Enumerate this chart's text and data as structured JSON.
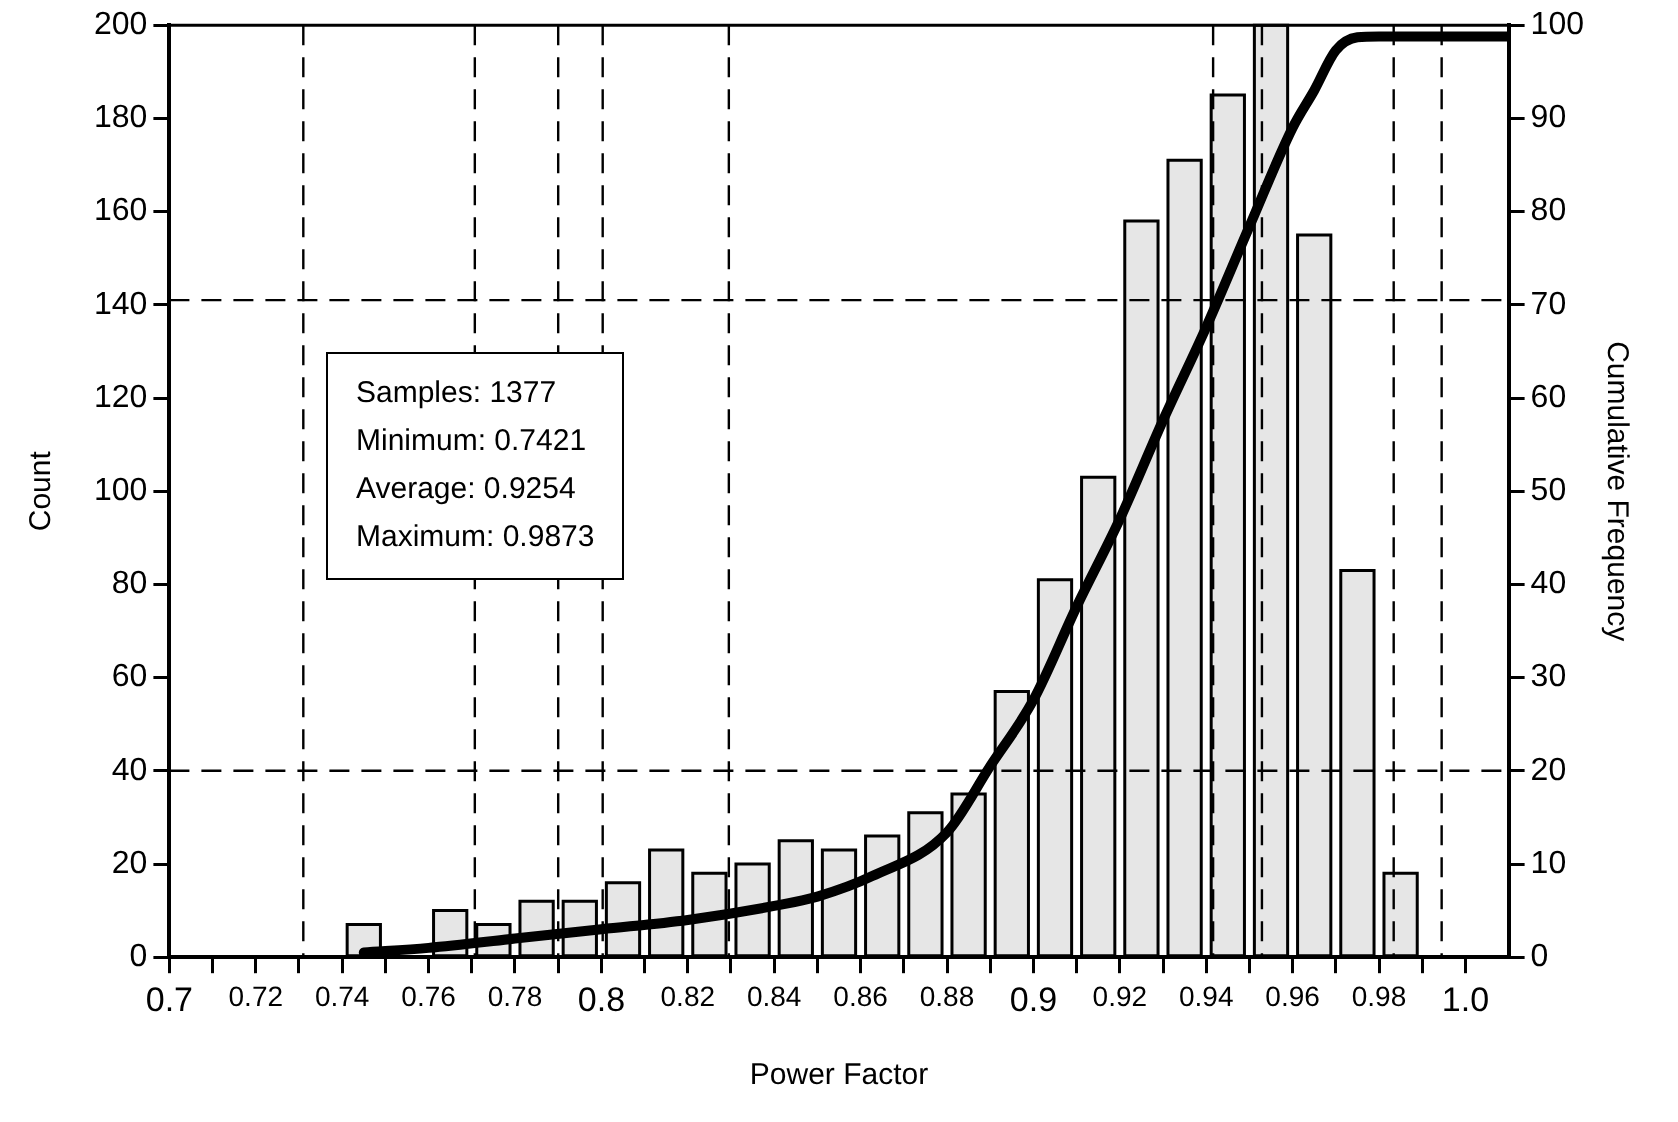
{
  "chart_data": {
    "type": "histogram",
    "xlabel": "Power Factor",
    "ylabel": "Count",
    "y2label": "Cumulative Frequency",
    "bins": [
      0.74,
      0.75,
      0.76,
      0.77,
      0.78,
      0.79,
      0.8,
      0.81,
      0.82,
      0.83,
      0.84,
      0.85,
      0.86,
      0.87,
      0.88,
      0.89,
      0.9,
      0.91,
      0.92,
      0.93,
      0.94,
      0.95,
      0.96,
      0.97,
      0.98,
      0.99
    ],
    "values": [
      7,
      0,
      10,
      7,
      12,
      12,
      16,
      23,
      18,
      20,
      25,
      23,
      26,
      31,
      35,
      57,
      81,
      103,
      158,
      171,
      185,
      200,
      155,
      83,
      18
    ],
    "color": "#e6e6e6",
    "series": [
      {
        "type": "line",
        "axis": "y2",
        "color": "#000000",
        "x": [
          0.745,
          0.76,
          0.78,
          0.8,
          0.82,
          0.84,
          0.85,
          0.8627,
          0.88,
          0.89,
          0.9,
          0.91,
          0.92,
          0.93,
          0.94,
          0.95,
          0.96,
          0.965,
          0.97,
          0.975,
          0.98,
          1.01
        ],
        "values": [
          0.5,
          1,
          2,
          3,
          4,
          5.5,
          6.5,
          8.7,
          13.4,
          20.5,
          27.6,
          37.6,
          47,
          57.6,
          67.6,
          78.4,
          89,
          93,
          97.3,
          98.7,
          98.8,
          98.8
        ]
      }
    ],
    "xlim": [
      0.7,
      1.01
    ],
    "xticks": [
      0.7,
      {
        "value": 0.71,
        "label": null
      },
      0.72,
      {
        "value": 0.73,
        "label": null
      },
      0.74,
      {
        "value": 0.75,
        "label": null
      },
      0.76,
      {
        "value": 0.77,
        "label": null
      },
      0.78,
      {
        "value": 0.79,
        "label": null
      },
      0.8,
      {
        "value": 0.81,
        "label": null
      },
      0.82,
      {
        "value": 0.83,
        "label": null
      },
      0.84,
      {
        "value": 0.85,
        "label": null
      },
      0.86,
      {
        "value": 0.87,
        "label": null
      },
      0.88,
      {
        "value": 0.89,
        "label": null
      },
      0.9,
      {
        "value": 0.91,
        "label": null
      },
      0.92,
      {
        "value": 0.93,
        "label": null
      },
      0.94,
      {
        "value": 0.95,
        "label": null
      },
      0.96,
      {
        "value": 0.97,
        "label": null
      },
      0.98,
      {
        "value": 0.99,
        "label": null
      },
      {
        "value": 1,
        "label": "1.0"
      }
    ],
    "ylim": [
      0,
      200
    ],
    "yticks": [
      0,
      20,
      40,
      60,
      80,
      100,
      120,
      140,
      160,
      180,
      200
    ],
    "y2lim": [
      0,
      100
    ],
    "y2ticks": [
      0,
      10,
      20,
      30,
      40,
      50,
      60,
      70,
      80,
      90,
      100
    ],
    "ref_lines": [
      {
        "axis": "x",
        "value": 0.731,
        "line_style": "dashed"
      },
      {
        "axis": "x",
        "value": 0.7707,
        "line_style": "dashed"
      },
      {
        "axis": "x",
        "value": 0.79,
        "line_style": "dashed"
      },
      {
        "axis": "x",
        "value": 0.8003,
        "line_style": "dashed"
      },
      {
        "axis": "x",
        "value": 0.8295,
        "line_style": "dashed"
      },
      {
        "axis": "x",
        "value": 0.9416,
        "line_style": "dashed"
      },
      {
        "axis": "x",
        "value": 0.9529,
        "line_style": "dashed"
      },
      {
        "axis": "x",
        "value": 0.9834,
        "line_style": "dashed"
      },
      {
        "axis": "x",
        "value": 0.9945,
        "line_style": "dashed"
      },
      {
        "axis": "y",
        "value": 141,
        "line_style": "dashed"
      },
      {
        "axis": "y",
        "value": 40,
        "line_style": "dashed"
      }
    ],
    "annotations": [
      "Samples: 1377",
      "Minimum: 0.7421",
      "Average: 0.9254",
      "Maximum: 0.9873"
    ],
    "grid": false,
    "legend": false
  }
}
